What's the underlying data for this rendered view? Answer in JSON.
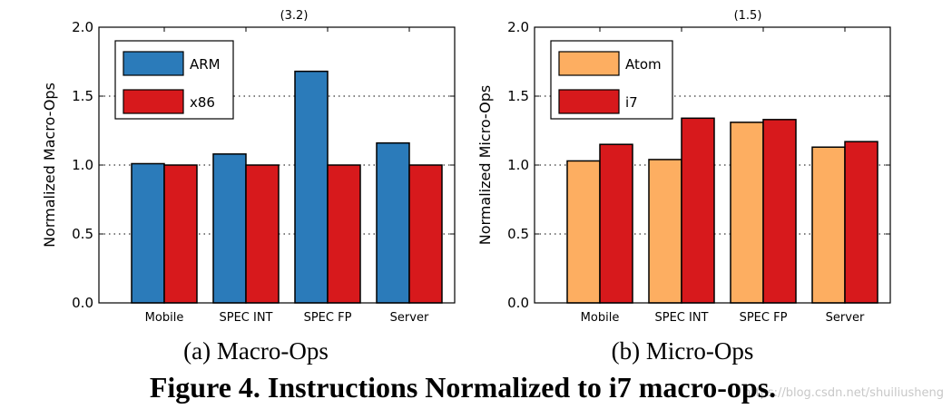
{
  "figure_caption": "Figure 4. Instructions Normalized to i7 macro-ops.",
  "watermark": "https://blog.csdn.net/shuiliusheng",
  "chart_data": [
    {
      "type": "bar",
      "subcaption": "(a) Macro-Ops",
      "ylabel": "Normalized Macro-Ops",
      "xlabel": "",
      "ylim": [
        0,
        2.0
      ],
      "yticks": [
        "0.0",
        "0.5",
        "1.0",
        "1.5",
        "2.0"
      ],
      "grid": "dotted horizontal at 0.5, 1.0, 1.5",
      "legend_position": "top-left",
      "categories": [
        "Mobile",
        "SPEC INT",
        "SPEC FP",
        "Server"
      ],
      "series": [
        {
          "name": "ARM",
          "color": "#2b7bba",
          "values": [
            1.01,
            1.08,
            1.68,
            1.16
          ]
        },
        {
          "name": "x86",
          "color": "#d7191c",
          "values": [
            1.0,
            1.0,
            1.0,
            1.0
          ]
        }
      ],
      "annotation": "(3.2)"
    },
    {
      "type": "bar",
      "subcaption": "(b) Micro-Ops",
      "ylabel": "Normalized Micro-Ops",
      "xlabel": "",
      "ylim": [
        0,
        2.0
      ],
      "yticks": [
        "0.0",
        "0.5",
        "1.0",
        "1.5",
        "2.0"
      ],
      "grid": "dotted horizontal at 0.5, 1.0, 1.5",
      "legend_position": "top-left",
      "categories": [
        "Mobile",
        "SPEC INT",
        "SPEC FP",
        "Server"
      ],
      "series": [
        {
          "name": "Atom",
          "color": "#fdae61",
          "values": [
            1.03,
            1.04,
            1.31,
            1.13
          ]
        },
        {
          "name": "i7",
          "color": "#d7191c",
          "values": [
            1.15,
            1.34,
            1.33,
            1.17
          ]
        }
      ],
      "annotation": "(1.5)"
    }
  ]
}
